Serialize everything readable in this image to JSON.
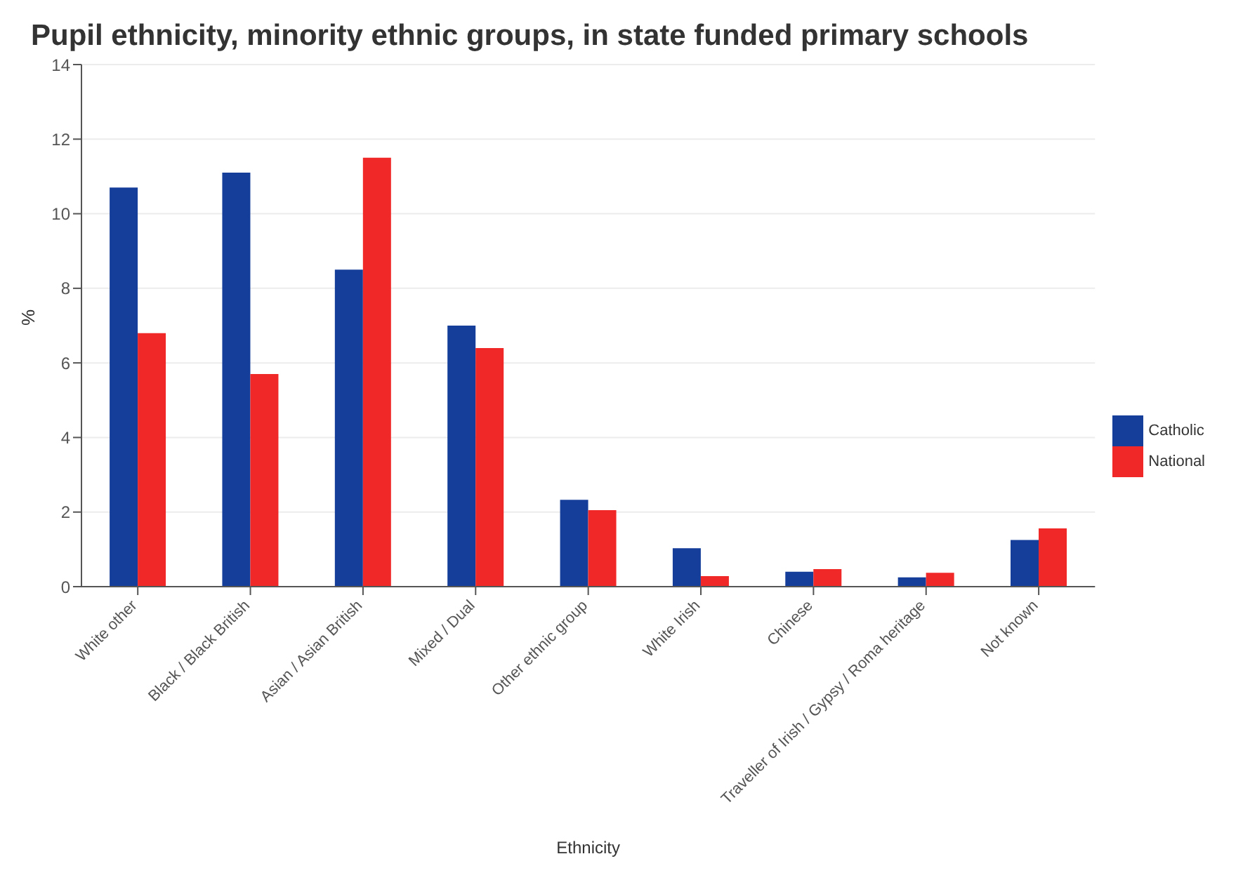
{
  "chart_data": {
    "type": "bar",
    "title": "Pupil ethnicity, minority ethnic groups, in state funded primary schools",
    "xlabel": "Ethnicity",
    "ylabel": "%",
    "categories": [
      "White other",
      "Black / Black British",
      "Asian / Asian British",
      "Mixed / Dual",
      "Other ethnic group",
      "White Irish",
      "Chinese",
      "Traveller of Irish / Gypsy / Roma heritage",
      "Not known"
    ],
    "series": [
      {
        "name": "Catholic",
        "color": "#143e9a",
        "values": [
          10.7,
          11.1,
          8.5,
          7.0,
          2.33,
          1.03,
          0.4,
          0.25,
          1.25
        ]
      },
      {
        "name": "National",
        "color": "#f02828",
        "values": [
          6.8,
          5.7,
          11.5,
          6.4,
          2.05,
          0.28,
          0.47,
          0.37,
          1.56
        ]
      }
    ],
    "ylim": [
      0,
      14
    ],
    "yticks": [
      0,
      2,
      4,
      6,
      8,
      10,
      12,
      14
    ],
    "grid": "y",
    "legend": "right"
  }
}
